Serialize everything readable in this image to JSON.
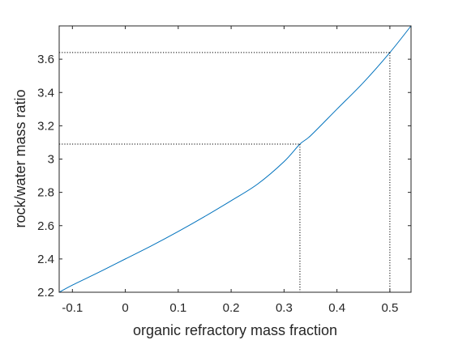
{
  "chart_data": {
    "type": "line",
    "title": "",
    "xlabel": "organic refractory mass fraction",
    "ylabel": "rock/water mass ratio",
    "xlim": [
      -0.125,
      0.54
    ],
    "ylim": [
      2.2,
      3.8
    ],
    "x_ticks": [
      -0.1,
      0,
      0.1,
      0.2,
      0.3,
      0.4,
      0.5
    ],
    "x_tick_labels": [
      "-0.1",
      "0",
      "0.1",
      "0.2",
      "0.3",
      "0.4",
      "0.5"
    ],
    "y_ticks": [
      2.2,
      2.4,
      2.6,
      2.8,
      3.0,
      3.2,
      3.4,
      3.6
    ],
    "y_tick_labels": [
      "2.2",
      "2.4",
      "2.6",
      "2.8",
      "3",
      "3.2",
      "3.4",
      "3.6"
    ],
    "grid": false,
    "legend": "none",
    "line_color": "#0072BD",
    "reference_line_color": "#000000",
    "series": [
      {
        "x": [
          -0.125,
          -0.1,
          -0.05,
          0,
          0.05,
          0.1,
          0.15,
          0.2,
          0.25,
          0.3,
          0.33,
          0.35,
          0.4,
          0.45,
          0.5,
          0.54
        ],
        "y": [
          2.2,
          2.243,
          2.32,
          2.4,
          2.48,
          2.565,
          2.655,
          2.75,
          2.85,
          2.985,
          3.09,
          3.14,
          3.3,
          3.46,
          3.64,
          3.8
        ]
      }
    ],
    "reference_points": [
      {
        "x": 0.33,
        "y": 3.09
      },
      {
        "x": 0.5,
        "y": 3.64
      }
    ]
  }
}
